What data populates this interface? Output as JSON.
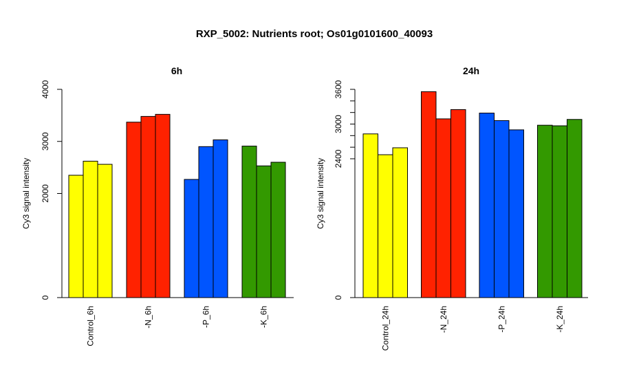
{
  "figure": {
    "title": "RXP_5002: Nutrients root; Os01g0101600_40093"
  },
  "colors": {
    "control": "#ffff00",
    "N": "#ff2200",
    "P": "#0055ff",
    "K": "#339900"
  },
  "chart_data": [
    {
      "type": "bar",
      "title": "6h",
      "xlabel": "",
      "ylabel": "Cy3 signal intensity",
      "ylim": [
        0,
        4000
      ],
      "yticks": [
        "0",
        "2000",
        "3000",
        "4000"
      ],
      "grid": false,
      "categories": [
        "Control_6h",
        "-N_6h",
        "-P_6h",
        "-K_6h"
      ],
      "groups": [
        {
          "category": "Control_6h",
          "color": "#ffff00",
          "values": [
            2350,
            2620,
            2560
          ]
        },
        {
          "category": "-N_6h",
          "color": "#ff2200",
          "values": [
            3370,
            3480,
            3520
          ]
        },
        {
          "category": "-P_6h",
          "color": "#0055ff",
          "values": [
            2270,
            2900,
            3030
          ]
        },
        {
          "category": "-K_6h",
          "color": "#339900",
          "values": [
            2910,
            2530,
            2600
          ]
        }
      ]
    },
    {
      "type": "bar",
      "title": "24h",
      "xlabel": "",
      "ylabel": "Cy3 signal intensity",
      "ylim": [
        0,
        3600
      ],
      "yticks": [
        "0",
        "2400",
        "3000",
        "3600"
      ],
      "grid": false,
      "categories": [
        "Control_24h",
        "-N_24h",
        "-P_24h",
        "-K_24h"
      ],
      "groups": [
        {
          "category": "Control_24h",
          "color": "#ffff00",
          "values": [
            2830,
            2470,
            2590
          ]
        },
        {
          "category": "-N_24h",
          "color": "#ff2200",
          "values": [
            3560,
            3090,
            3250
          ]
        },
        {
          "category": "-P_24h",
          "color": "#0055ff",
          "values": [
            3190,
            3060,
            2900
          ]
        },
        {
          "category": "-K_24h",
          "color": "#339900",
          "values": [
            2980,
            2970,
            3080
          ]
        }
      ]
    }
  ]
}
